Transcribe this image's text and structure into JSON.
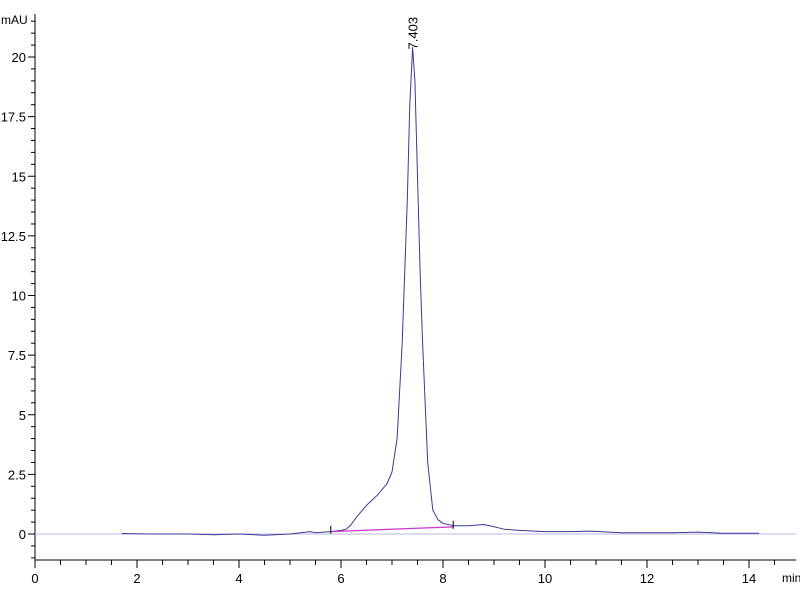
{
  "chart_data": {
    "type": "line",
    "title": "",
    "xlabel": "min",
    "ylabel": "mAU",
    "xlim": [
      0,
      14.9
    ],
    "ylim": [
      -1.1,
      21.5
    ],
    "x_ticks": [
      "0",
      "2",
      "4",
      "6",
      "8",
      "10",
      "12",
      "14"
    ],
    "y_ticks": [
      "0",
      "2.5",
      "5",
      "7.5",
      "10",
      "12.5",
      "15",
      "17.5",
      "20"
    ],
    "grid": false,
    "colors": {
      "trace": "#3a3a9a",
      "baseline": "#cc33cc",
      "axis": "#000000"
    },
    "series": [
      {
        "x": [
          1.7,
          2.3,
          3.0,
          3.5,
          4.0,
          4.5,
          5.0,
          5.4,
          5.5,
          5.8,
          6.0,
          6.1,
          6.2,
          6.3,
          6.5,
          6.7,
          6.9,
          7.0,
          7.1,
          7.2,
          7.3,
          7.35,
          7.403,
          7.45,
          7.5,
          7.55,
          7.6,
          7.7,
          7.8,
          7.9,
          8.0,
          8.2,
          8.5,
          8.8,
          9.0,
          9.2,
          9.5,
          10.0,
          10.5,
          10.9,
          11.5,
          12.0,
          12.5,
          13.0,
          13.5,
          14.2
        ],
        "y": [
          0.02,
          0.0,
          0.0,
          -0.03,
          0.0,
          -0.05,
          0.0,
          0.1,
          0.05,
          0.1,
          0.15,
          0.2,
          0.4,
          0.7,
          1.2,
          1.6,
          2.1,
          2.6,
          4.0,
          8.0,
          14.0,
          18.0,
          20.4,
          19.0,
          15.0,
          11.0,
          8.0,
          3.0,
          1.0,
          0.6,
          0.45,
          0.35,
          0.35,
          0.4,
          0.3,
          0.2,
          0.15,
          0.1,
          0.1,
          0.12,
          0.05,
          0.05,
          0.05,
          0.08,
          0.03,
          0.03
        ]
      }
    ],
    "integration_baseline": {
      "x": [
        5.8,
        8.2
      ],
      "y": [
        0.1,
        0.3
      ]
    },
    "annotations": [
      {
        "text": "7.403",
        "x": 7.403,
        "y": 20.4
      }
    ]
  }
}
